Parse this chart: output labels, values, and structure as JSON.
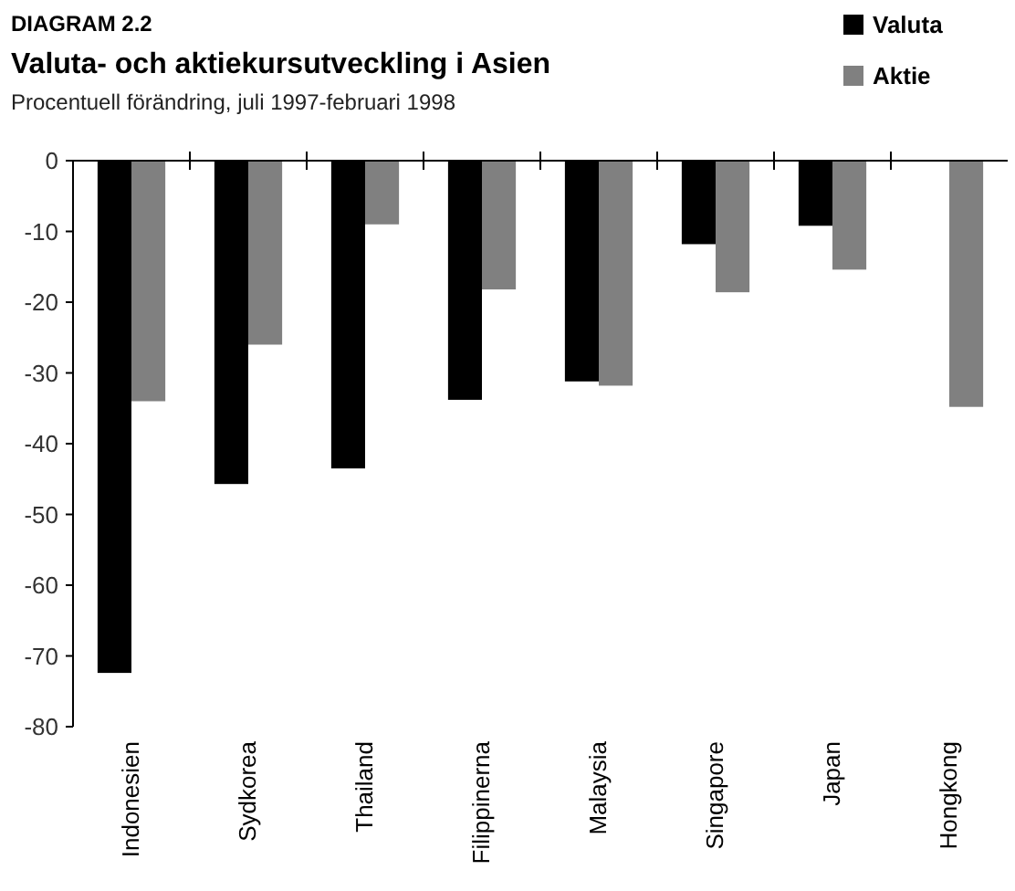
{
  "chart_data": {
    "type": "bar",
    "title": "DIAGRAM 2.2",
    "subtitle": "Valuta- och aktiekursutveckling i Asien",
    "annotations": [
      "Procentuell förändring, juli 1997-februari 1998"
    ],
    "categories": [
      "Indonesien",
      "Sydkorea",
      "Thailand",
      "Filippinerna",
      "Malaysia",
      "Singapore",
      "Japan",
      "Hongkong"
    ],
    "series": [
      {
        "name": "Valuta",
        "color": "#000000",
        "values": [
          -72.4,
          -45.7,
          -43.5,
          -33.8,
          -31.2,
          -11.8,
          -9.2,
          null
        ]
      },
      {
        "name": "Aktie",
        "color": "#808080",
        "values": [
          -34,
          -26,
          -9,
          -18.2,
          -31.8,
          -18.6,
          -15.4,
          -34.8
        ]
      }
    ],
    "ylim": [
      -80,
      0
    ],
    "yticks": [
      -80,
      -70,
      -60,
      -50,
      -40,
      -30,
      -20,
      -10,
      0
    ],
    "grid": false,
    "legend": "top right"
  }
}
